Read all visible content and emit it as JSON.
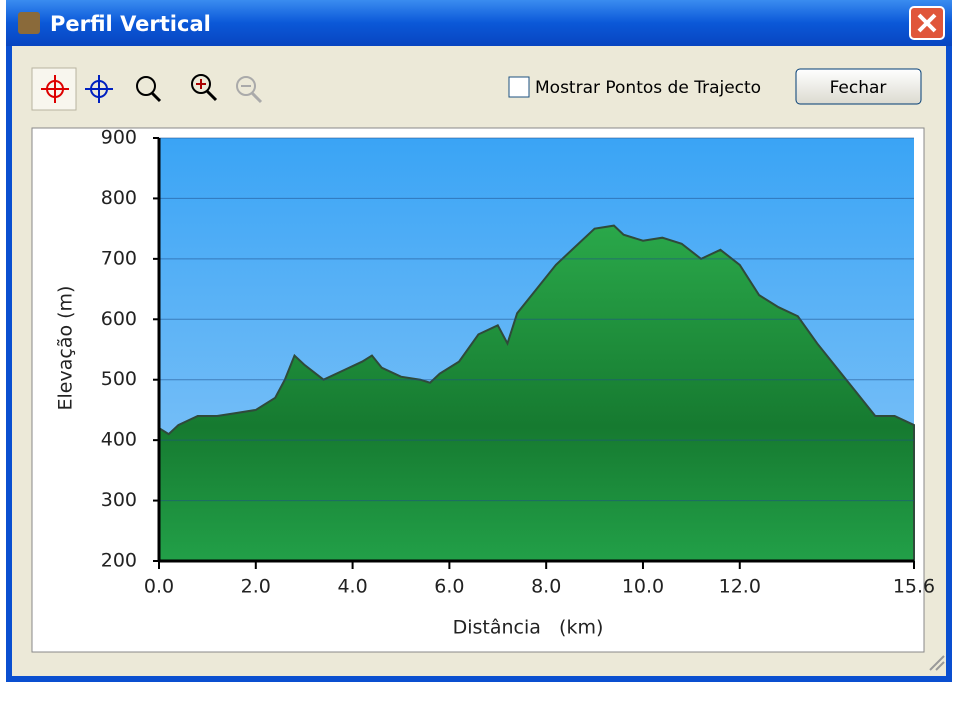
{
  "window": {
    "title": "Perfil Vertical",
    "checkbox_label": "Mostrar Pontos de Trajecto",
    "button": "Fechar"
  },
  "chart_data": {
    "type": "area",
    "x_label": "Distância   (km)",
    "y_label": "Elevação (m)",
    "x": [
      0.0,
      0.2,
      0.4,
      0.8,
      1.2,
      1.6,
      2.0,
      2.4,
      2.6,
      2.8,
      3.0,
      3.4,
      3.8,
      4.2,
      4.4,
      4.6,
      5.0,
      5.4,
      5.6,
      5.8,
      6.2,
      6.6,
      7.0,
      7.2,
      7.4,
      7.8,
      8.2,
      8.6,
      9.0,
      9.4,
      9.6,
      10.0,
      10.4,
      10.8,
      11.2,
      11.6,
      12.0,
      12.4,
      12.8,
      13.2,
      13.6,
      14.0,
      14.4,
      14.8,
      15.2,
      15.6
    ],
    "values": [
      420,
      410,
      425,
      440,
      440,
      445,
      450,
      470,
      500,
      540,
      525,
      500,
      515,
      530,
      540,
      520,
      505,
      500,
      495,
      510,
      530,
      575,
      590,
      560,
      610,
      650,
      690,
      720,
      750,
      755,
      740,
      730,
      735,
      725,
      700,
      715,
      690,
      640,
      620,
      605,
      560,
      520,
      480,
      440,
      440,
      425
    ],
    "color": "#1fa043",
    "xlim": [
      0,
      15.6
    ],
    "xticks": [
      {
        "value": 0,
        "label": "0.0"
      },
      {
        "value": 2,
        "label": "2.0"
      },
      {
        "value": 4,
        "label": "4.0"
      },
      {
        "value": 6,
        "label": "6.0"
      },
      {
        "value": 8,
        "label": "8.0"
      },
      {
        "value": 10,
        "label": "10.0"
      },
      {
        "value": 12,
        "label": "12.0"
      },
      15.6
    ],
    "ylim": [
      200,
      900
    ],
    "yticks": [
      200,
      300,
      400,
      500,
      600,
      700,
      800,
      900
    ],
    "grid": true
  }
}
